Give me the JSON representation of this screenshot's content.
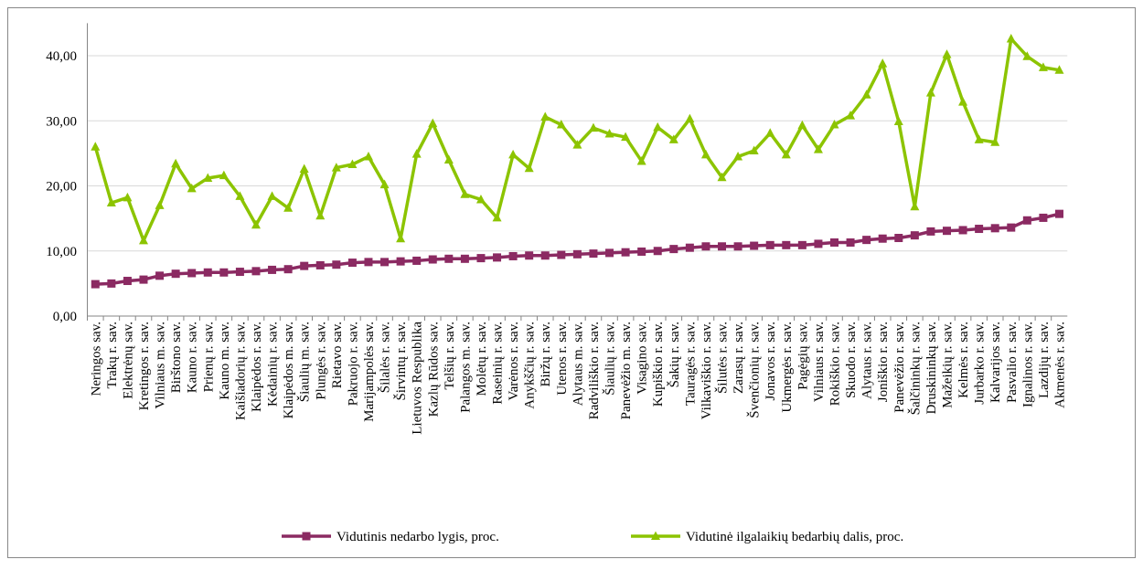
{
  "chart_data": {
    "type": "line",
    "categories": [
      "Neringos sav.",
      "Trakų r. sav.",
      "Elektrėnų sav.",
      "Kretingos r. sav.",
      "Vilniaus m. sav.",
      "Birštono sav.",
      "Kauno r. sav.",
      "Prienų r. sav.",
      "Kauno m. sav.",
      "Kaišiadorių r. sav.",
      "Klaipėdos r. sav.",
      "Kėdainių r. sav.",
      "Klaipėdos m. sav.",
      "Šiaulių m. sav.",
      "Plungės r. sav.",
      "Rietavo sav.",
      "Pakruojo r. sav.",
      "Marijampolės sav.",
      "Šilalės r. sav.",
      "Širvintų r. sav.",
      "Lietuvos Respublika",
      "Kazlų Rūdos sav.",
      "Telšių r. sav.",
      "Palangos m. sav.",
      "Molėtų r. sav.",
      "Raseinių r. sav.",
      "Varėnos r. sav.",
      "Anykščių r. sav.",
      "Biržų r. sav.",
      "Utenos r. sav.",
      "Alytaus m. sav.",
      "Radviliškio r. sav.",
      "Šiaulių r. sav.",
      "Panevėžio m. sav.",
      "Visagino sav.",
      "Kupiškio r. sav.",
      "Šakių r. sav.",
      "Tauragės r. sav.",
      "Vilkaviškio r. sav.",
      "Šilutės r. sav.",
      "Zarasų r. sav.",
      "Švenčionių r. sav.",
      "Jonavos r. sav.",
      "Ukmergės r. sav.",
      "Pagėgių sav.",
      "Vilniaus r. sav.",
      "Rokiškio r. sav.",
      "Skuodo r. sav.",
      "Alytaus r. sav.",
      "Joniškio r. sav.",
      "Panevėžio r. sav.",
      "Šalčininkų r. sav.",
      "Druskininkų sav.",
      "Mažeikių r. sav.",
      "Kelmės r. sav.",
      "Jurbarko r. sav.",
      "Kalvarijos sav.",
      "Pasvalio r. sav.",
      "Ignalinos r. sav.",
      "Lazdijų r. sav.",
      "Akmenės r. sav."
    ],
    "series": [
      {
        "name": "Vidutinis nedarbo lygis, proc.",
        "color": "#8b2a62",
        "marker": "square",
        "values": [
          4.9,
          5.0,
          5.4,
          5.6,
          6.2,
          6.5,
          6.6,
          6.7,
          6.7,
          6.8,
          6.9,
          7.1,
          7.2,
          7.7,
          7.8,
          7.9,
          8.2,
          8.3,
          8.3,
          8.4,
          8.5,
          8.7,
          8.8,
          8.8,
          8.9,
          9.0,
          9.2,
          9.3,
          9.3,
          9.4,
          9.5,
          9.6,
          9.7,
          9.8,
          9.9,
          10.0,
          10.3,
          10.5,
          10.7,
          10.7,
          10.7,
          10.8,
          10.9,
          10.9,
          10.9,
          11.1,
          11.3,
          11.3,
          11.7,
          11.9,
          12.0,
          12.4,
          13.0,
          13.1,
          13.2,
          13.4,
          13.5,
          13.6,
          14.7,
          15.1,
          15.7
        ]
      },
      {
        "name": "Vidutinė ilgalaikių bedarbių dalis, proc.",
        "color": "#8cc400",
        "marker": "triangle",
        "values": [
          26.0,
          17.4,
          18.2,
          11.6,
          17.0,
          23.4,
          19.6,
          21.2,
          21.6,
          18.4,
          14.0,
          18.4,
          16.6,
          22.6,
          15.4,
          22.8,
          23.3,
          24.5,
          20.2,
          11.9,
          24.9,
          29.6,
          24.0,
          18.7,
          17.9,
          15.1,
          24.8,
          22.7,
          30.6,
          29.4,
          26.3,
          28.9,
          28.0,
          27.5,
          23.8,
          29.0,
          27.1,
          30.3,
          24.8,
          21.3,
          24.5,
          25.4,
          28.1,
          24.8,
          29.3,
          25.6,
          29.4,
          30.8,
          34.0,
          38.8,
          29.9,
          16.8,
          34.3,
          40.2,
          32.9,
          27.1,
          26.7,
          42.6,
          39.9,
          38.2,
          37.8
        ]
      }
    ],
    "ylim": [
      0,
      45
    ],
    "yticks": [
      {
        "value": 0,
        "label": "0,00"
      },
      {
        "value": 10,
        "label": "10,00"
      },
      {
        "value": 20,
        "label": "20,00"
      },
      {
        "value": 30,
        "label": "30,00"
      },
      {
        "value": 40,
        "label": "40,00"
      }
    ],
    "grid": true,
    "legend": "bottom"
  }
}
